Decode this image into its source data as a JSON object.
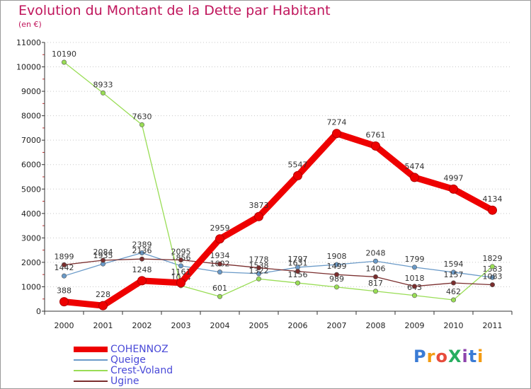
{
  "title": "Evolution du Montant de la Dette par Habitant",
  "unit": "(en €)",
  "logo": {
    "text": "ProXiti",
    "colors": [
      "#3a7bd5",
      "#f39c12",
      "#e74c3c",
      "#27ae60",
      "#8e44ad",
      "#3a7bd5",
      "#f39c12"
    ]
  },
  "chart_data": {
    "type": "line",
    "categories": [
      "2000",
      "2001",
      "2002",
      "2003",
      "2004",
      "2005",
      "2006",
      "2007",
      "2008",
      "2009",
      "2010",
      "2011"
    ],
    "ylim": [
      0,
      11000
    ],
    "yticks": [
      0,
      1000,
      2000,
      3000,
      4000,
      5000,
      6000,
      7000,
      8000,
      9000,
      10000,
      11000
    ],
    "legend_position": "bottom-left",
    "series": [
      {
        "name": "COHENNOZ",
        "color": "#ee0000",
        "values": [
          388,
          228,
          1248,
          1161,
          2959,
          3873,
          5547,
          7274,
          6761,
          5474,
          4997,
          4134
        ],
        "labels": [
          "388",
          "228",
          "1248",
          "1161",
          "2959",
          "3873",
          "5547",
          "7274",
          "6761",
          "5474",
          "4997",
          "4134"
        ]
      },
      {
        "name": "Queige",
        "color": "#6a9ac8",
        "values": [
          1442,
          1935,
          2389,
          1856,
          1602,
          1538,
          1797,
          1908,
          2048,
          1799,
          1594,
          1383
        ],
        "labels": [
          "1442",
          "1935",
          "2389",
          "1856",
          "1602",
          "1538",
          "1797",
          "1908",
          "2048",
          "1799",
          "1594",
          "1383"
        ]
      },
      {
        "name": "Crest-Voland",
        "color": "#99dd55",
        "values": [
          10190,
          8933,
          7630,
          1044,
          601,
          1322,
          1156,
          989,
          817,
          643,
          462,
          1829
        ],
        "labels": [
          "10190",
          "8933",
          "7630",
          "1044",
          "601",
          "1322",
          "1156",
          "989",
          "817",
          "643",
          "462",
          "1829"
        ]
      },
      {
        "name": "Ugine",
        "color": "#7a2e2e",
        "values": [
          1899,
          2084,
          2136,
          2095,
          1934,
          1778,
          1631,
          1499,
          1406,
          1018,
          1157,
          1083
        ],
        "labels": [
          "1899",
          "2084",
          "2136",
          "2095",
          "1934",
          "1778",
          "1631",
          "1499",
          "1406",
          "1018",
          "1157",
          "1083"
        ]
      }
    ]
  }
}
